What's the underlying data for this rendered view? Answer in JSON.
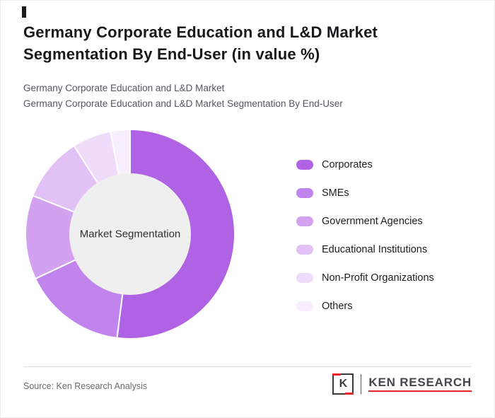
{
  "page": {
    "title": "Germany Corporate Education and L&D Market Segmentation By End-User (in value %)",
    "subtitle_line1": "Germany Corporate Education and L&D Market",
    "subtitle_line2": "Germany Corporate Education and L&D Market Segmentation By End-User",
    "source": "Source: Ken Research Analysis"
  },
  "logo": {
    "letter": "K",
    "text": "KEN RESEARCH",
    "accent_color": "#e8262a",
    "text_color": "#46464b"
  },
  "chart_data": {
    "type": "pie",
    "donut": true,
    "title": "Germany Corporate Education and L&D Market Segmentation By End-User (in value %)",
    "center_label": "Market Segmentation",
    "center_color": "#efefef",
    "categories": [
      "Corporates",
      "SMEs",
      "Government Agencies",
      "Educational Institutions",
      "Non-Profit Organizations",
      "Others"
    ],
    "values": [
      52,
      16,
      13,
      10,
      6,
      3
    ],
    "colors": [
      "#af62e4",
      "#c184ec",
      "#d2a2f1",
      "#e2c2f6",
      "#efdcfb",
      "#f7edfd"
    ],
    "legend_position": "right",
    "start_angle_deg": -90,
    "slice_gap_stroke": "#ffffff"
  }
}
